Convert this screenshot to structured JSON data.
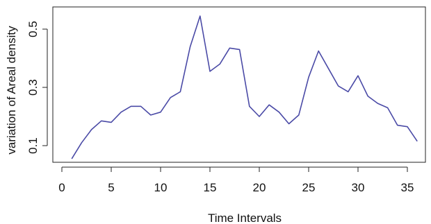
{
  "chart_data": {
    "type": "line",
    "title": "",
    "xlabel": "Time Intervals",
    "ylabel": "variation of Areal density",
    "xlim": [
      0,
      37
    ],
    "ylim": [
      0.02,
      0.57
    ],
    "xticks": [
      0,
      5,
      10,
      15,
      20,
      25,
      30,
      35
    ],
    "yticks": [
      0.1,
      0.3,
      0.5
    ],
    "xtick_labels": [
      "0",
      "5",
      "10",
      "15",
      "20",
      "25",
      "30",
      "35"
    ],
    "ytick_labels": [
      "0.1",
      "0.3",
      "0.5"
    ],
    "grid": false,
    "line_color": "#4a4aa6",
    "series": [
      {
        "x": [
          1,
          2,
          3,
          4,
          5,
          6,
          7,
          8,
          9,
          10,
          11,
          12,
          13,
          14,
          15,
          16,
          17,
          18,
          19,
          20,
          21,
          22,
          23,
          24,
          25,
          26,
          27,
          28,
          29,
          30,
          31,
          32,
          33,
          34,
          35,
          36
        ],
        "values": [
          0.055,
          0.11,
          0.155,
          0.185,
          0.18,
          0.215,
          0.235,
          0.235,
          0.205,
          0.215,
          0.265,
          0.285,
          0.44,
          0.545,
          0.355,
          0.38,
          0.435,
          0.43,
          0.235,
          0.2,
          0.24,
          0.215,
          0.175,
          0.205,
          0.335,
          0.425,
          0.365,
          0.305,
          0.285,
          0.34,
          0.27,
          0.245,
          0.23,
          0.17,
          0.165,
          0.115
        ]
      }
    ]
  }
}
